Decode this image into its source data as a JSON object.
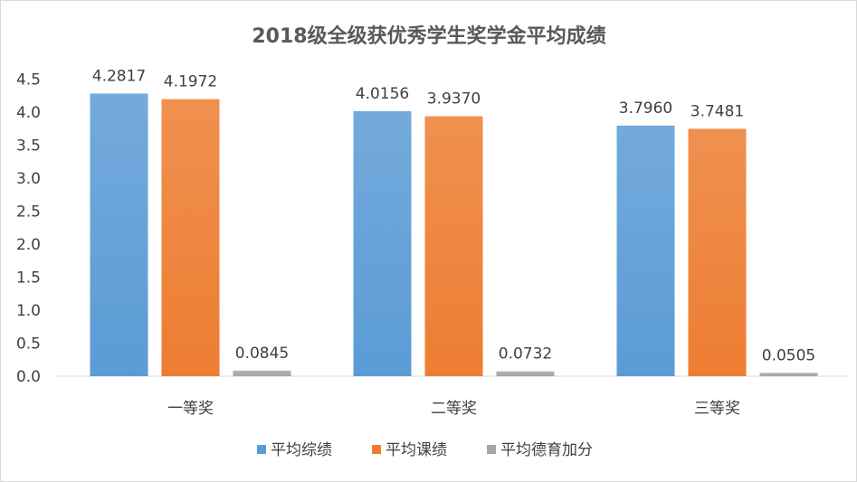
{
  "chart_data": {
    "type": "bar",
    "title": "2018级全级获优秀学生奖学金平均成绩",
    "categories": [
      "一等奖",
      "二等奖",
      "三等奖"
    ],
    "series": [
      {
        "name": "平均综绩",
        "values": [
          4.2817,
          4.0156,
          3.796
        ],
        "labels": [
          "4.2817",
          "4.0156",
          "3.7960"
        ],
        "color": "#5b9bd5"
      },
      {
        "name": "平均课绩",
        "values": [
          4.1972,
          3.937,
          3.7481
        ],
        "labels": [
          "4.1972",
          "3.9370",
          "3.7481"
        ],
        "color": "#ed7d31"
      },
      {
        "name": "平均德育加分",
        "values": [
          0.0845,
          0.0732,
          0.0505
        ],
        "labels": [
          "0.0845",
          "0.0732",
          "0.0505"
        ],
        "color": "#a5a5a5"
      }
    ],
    "yticks": [
      "0.0",
      "0.5",
      "1.0",
      "1.5",
      "2.0",
      "2.5",
      "3.0",
      "3.5",
      "4.0",
      "4.5"
    ],
    "ylim": [
      0,
      4.5
    ],
    "grid": false,
    "legend_position": "bottom"
  }
}
